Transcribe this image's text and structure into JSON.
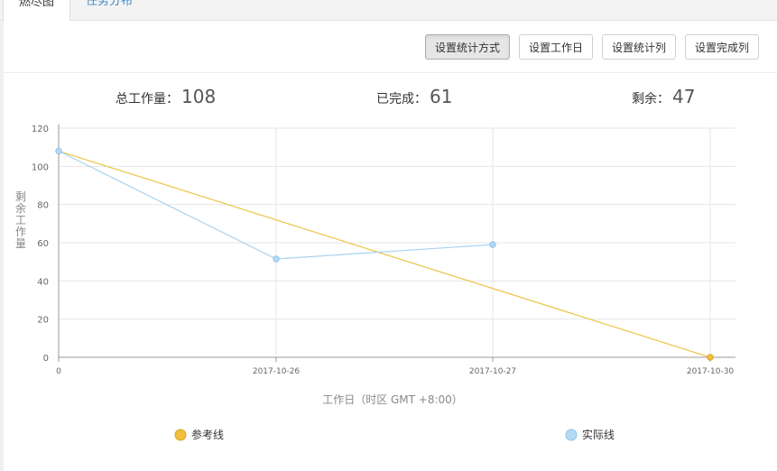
{
  "tabs": [
    "燃尽图",
    "任务分布"
  ],
  "toolbar": {
    "btn_method": "设置统计方式",
    "btn_workday": "设置工作日",
    "btn_columns": "设置统计列",
    "btn_done_col": "设置完成列"
  },
  "stats": {
    "total_label": "总工作量：",
    "total_value": "108",
    "done_label": "已完成：",
    "done_value": "61",
    "remain_label": "剩余：",
    "remain_value": "47"
  },
  "colors": {
    "reference": "#ecc445",
    "actual": "#a8d3f3",
    "actual_fill": "#b5daf6",
    "reference_marker": "#f0bf3b"
  },
  "chart_data": {
    "type": "line",
    "categories": [
      "0",
      "2017-10-26",
      "2017-10-27",
      "2017-10-30"
    ],
    "xlabel": "工作日（时区 GMT +8:00）",
    "ylabel": "剩余工作量",
    "ylim": [
      0,
      120
    ],
    "yticks": [
      "0",
      "20",
      "40",
      "60",
      "80",
      "100",
      "120"
    ],
    "grid": true,
    "legend_position": "bottom",
    "series": [
      {
        "name": "参考线",
        "values": [
          108,
          null,
          null,
          0
        ]
      },
      {
        "name": "实际线",
        "values": [
          108,
          51.5,
          59,
          null
        ]
      }
    ]
  }
}
